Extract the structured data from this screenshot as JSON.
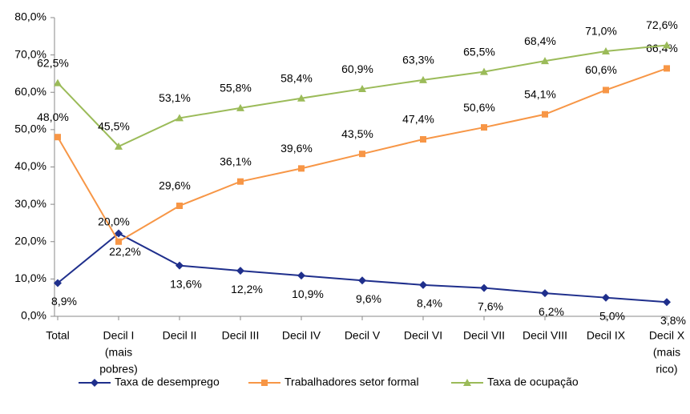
{
  "chart_data": {
    "type": "line",
    "categories": [
      [
        "Total"
      ],
      [
        "Decil I",
        "(mais",
        "pobres)"
      ],
      [
        "Decil II"
      ],
      [
        "Decil III"
      ],
      [
        "Decil IV"
      ],
      [
        "Decil V"
      ],
      [
        "Decil VI"
      ],
      [
        "Decil VII"
      ],
      [
        "Decil VIII"
      ],
      [
        "Decil IX"
      ],
      [
        "Decil X",
        "(mais",
        "rico)"
      ]
    ],
    "series": [
      {
        "name": "Taxa de desemprego",
        "color": "#1f2f8c",
        "marker": "diamond",
        "values": [
          8.9,
          22.2,
          13.6,
          12.2,
          10.9,
          9.6,
          8.4,
          7.6,
          6.2,
          5.0,
          3.8
        ],
        "value_labels": [
          "8,9%",
          "22,2%",
          "13,6%",
          "12,2%",
          "10,9%",
          "9,6%",
          "8,4%",
          "7,6%",
          "6,2%",
          "5,0%",
          "3,8%"
        ]
      },
      {
        "name": "Trabalhadores setor formal",
        "color": "#f79646",
        "marker": "square",
        "values": [
          48.0,
          20.0,
          29.6,
          36.1,
          39.6,
          43.5,
          47.4,
          50.6,
          54.1,
          60.6,
          66.4
        ],
        "value_labels": [
          "48,0%",
          "20,0%",
          "29,6%",
          "36,1%",
          "39,6%",
          "43,5%",
          "47,4%",
          "50,6%",
          "54,1%",
          "60,6%",
          "66,4%"
        ]
      },
      {
        "name": "Taxa de ocupação",
        "color": "#9bbb59",
        "marker": "triangle",
        "values": [
          62.5,
          45.5,
          53.1,
          55.8,
          58.4,
          60.9,
          63.3,
          65.5,
          68.4,
          71.0,
          72.6
        ],
        "value_labels": [
          "62,5%",
          "45,5%",
          "53,1%",
          "55,8%",
          "58,4%",
          "60,9%",
          "63,3%",
          "65,5%",
          "68,4%",
          "71,0%",
          "72,6%"
        ]
      }
    ],
    "ylim": [
      0,
      80
    ],
    "yticks": [
      {
        "value": 0,
        "label": "0,0%"
      },
      {
        "value": 10,
        "label": "10,0%"
      },
      {
        "value": 20,
        "label": "20,0%"
      },
      {
        "value": 30,
        "label": "30,0%"
      },
      {
        "value": 40,
        "label": "40,0%"
      },
      {
        "value": 50,
        "label": "50,0%"
      },
      {
        "value": 60,
        "label": "60,0%"
      },
      {
        "value": 70,
        "label": "70,0%"
      },
      {
        "value": 80,
        "label": "80,0%"
      }
    ],
    "legend": "bottom"
  }
}
